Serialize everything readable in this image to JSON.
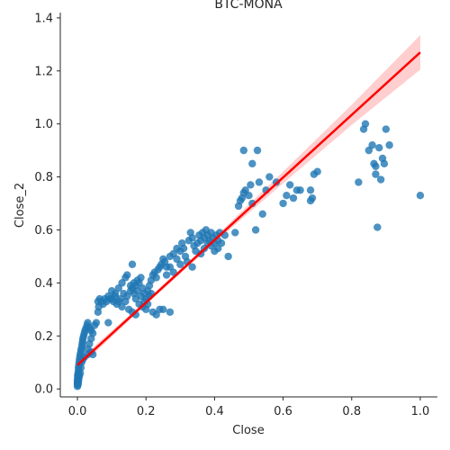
{
  "chart_data": {
    "type": "scatter",
    "title": "BTC-MONA",
    "xlabel": "Close",
    "ylabel": "Close_2",
    "xlim": [
      -0.05,
      1.05
    ],
    "ylim": [
      -0.03,
      1.42
    ],
    "xticks": [
      0.0,
      0.2,
      0.4,
      0.6,
      0.8,
      1.0
    ],
    "xtick_labels": [
      "0.0",
      "0.2",
      "0.4",
      "0.6",
      "0.8",
      "1.0"
    ],
    "yticks": [
      0.0,
      0.2,
      0.4,
      0.6,
      0.8,
      1.0,
      1.2,
      1.4
    ],
    "ytick_labels": [
      "0.0",
      "0.2",
      "0.4",
      "0.6",
      "0.8",
      "1.0",
      "1.2",
      "1.4"
    ],
    "grid": false,
    "point_color": "#1f77b4",
    "regression": {
      "color": "#ff0000",
      "band_color": "#ffb3b3",
      "x": [
        0.0,
        0.2,
        0.4,
        0.6,
        0.8,
        1.0
      ],
      "y": [
        0.09,
        0.326,
        0.562,
        0.798,
        1.034,
        1.27
      ],
      "ci_lower": [
        0.075,
        0.318,
        0.552,
        0.776,
        0.996,
        1.205
      ],
      "ci_upper": [
        0.105,
        0.334,
        0.572,
        0.82,
        1.072,
        1.335
      ]
    },
    "points": [
      [
        0.0,
        0.01
      ],
      [
        0.0,
        0.02
      ],
      [
        0.001,
        0.03
      ],
      [
        0.002,
        0.04
      ],
      [
        0.001,
        0.05
      ],
      [
        0.002,
        0.06
      ],
      [
        0.003,
        0.07
      ],
      [
        0.003,
        0.08
      ],
      [
        0.004,
        0.09
      ],
      [
        0.005,
        0.1
      ],
      [
        0.006,
        0.11
      ],
      [
        0.007,
        0.12
      ],
      [
        0.008,
        0.13
      ],
      [
        0.01,
        0.14
      ],
      [
        0.011,
        0.15
      ],
      [
        0.013,
        0.16
      ],
      [
        0.014,
        0.17
      ],
      [
        0.015,
        0.18
      ],
      [
        0.016,
        0.19
      ],
      [
        0.018,
        0.2
      ],
      [
        0.02,
        0.21
      ],
      [
        0.022,
        0.22
      ],
      [
        0.025,
        0.23
      ],
      [
        0.028,
        0.24
      ],
      [
        0.03,
        0.25
      ],
      [
        0.035,
        0.23
      ],
      [
        0.04,
        0.22
      ],
      [
        0.045,
        0.21
      ],
      [
        0.04,
        0.19
      ],
      [
        0.035,
        0.17
      ],
      [
        0.03,
        0.15
      ],
      [
        0.04,
        0.14
      ],
      [
        0.045,
        0.13
      ],
      [
        0.05,
        0.24
      ],
      [
        0.055,
        0.25
      ],
      [
        0.03,
        0.13
      ],
      [
        0.02,
        0.12
      ],
      [
        0.015,
        0.11
      ],
      [
        0.012,
        0.1
      ],
      [
        0.01,
        0.08
      ],
      [
        0.008,
        0.06
      ],
      [
        0.006,
        0.05
      ],
      [
        0.004,
        0.04
      ],
      [
        0.003,
        0.03
      ],
      [
        0.002,
        0.02
      ],
      [
        0.001,
        0.015
      ],
      [
        0.0,
        0.025
      ],
      [
        0.0,
        0.035
      ],
      [
        0.001,
        0.045
      ],
      [
        0.002,
        0.055
      ],
      [
        0.09,
        0.25
      ],
      [
        0.06,
        0.29
      ],
      [
        0.062,
        0.31
      ],
      [
        0.07,
        0.33
      ],
      [
        0.08,
        0.34
      ],
      [
        0.09,
        0.35
      ],
      [
        0.1,
        0.37
      ],
      [
        0.11,
        0.36
      ],
      [
        0.12,
        0.38
      ],
      [
        0.13,
        0.4
      ],
      [
        0.14,
        0.42
      ],
      [
        0.145,
        0.43
      ],
      [
        0.06,
        0.33
      ],
      [
        0.065,
        0.34
      ],
      [
        0.075,
        0.32
      ],
      [
        0.085,
        0.33
      ],
      [
        0.095,
        0.34
      ],
      [
        0.105,
        0.33
      ],
      [
        0.115,
        0.32
      ],
      [
        0.125,
        0.34
      ],
      [
        0.135,
        0.36
      ],
      [
        0.145,
        0.35
      ],
      [
        0.155,
        0.37
      ],
      [
        0.16,
        0.38
      ],
      [
        0.165,
        0.36
      ],
      [
        0.17,
        0.39
      ],
      [
        0.175,
        0.41
      ],
      [
        0.18,
        0.4
      ],
      [
        0.185,
        0.42
      ],
      [
        0.19,
        0.38
      ],
      [
        0.195,
        0.36
      ],
      [
        0.2,
        0.34
      ],
      [
        0.205,
        0.37
      ],
      [
        0.21,
        0.39
      ],
      [
        0.215,
        0.41
      ],
      [
        0.22,
        0.43
      ],
      [
        0.225,
        0.44
      ],
      [
        0.23,
        0.42
      ],
      [
        0.235,
        0.45
      ],
      [
        0.24,
        0.46
      ],
      [
        0.245,
        0.47
      ],
      [
        0.25,
        0.49
      ],
      [
        0.255,
        0.48
      ],
      [
        0.26,
        0.46
      ],
      [
        0.15,
        0.3
      ],
      [
        0.16,
        0.29
      ],
      [
        0.17,
        0.28
      ],
      [
        0.18,
        0.32
      ],
      [
        0.19,
        0.31
      ],
      [
        0.2,
        0.3
      ],
      [
        0.21,
        0.35
      ],
      [
        0.22,
        0.29
      ],
      [
        0.23,
        0.28
      ],
      [
        0.24,
        0.3
      ],
      [
        0.25,
        0.3
      ],
      [
        0.27,
        0.29
      ],
      [
        0.16,
        0.47
      ],
      [
        0.17,
        0.34
      ],
      [
        0.14,
        0.33
      ],
      [
        0.13,
        0.31
      ],
      [
        0.12,
        0.33
      ],
      [
        0.11,
        0.35
      ],
      [
        0.1,
        0.34
      ],
      [
        0.155,
        0.39
      ],
      [
        0.165,
        0.4
      ],
      [
        0.175,
        0.37
      ],
      [
        0.185,
        0.35
      ],
      [
        0.195,
        0.33
      ],
      [
        0.205,
        0.32
      ],
      [
        0.215,
        0.36
      ],
      [
        0.27,
        0.5
      ],
      [
        0.28,
        0.51
      ],
      [
        0.29,
        0.49
      ],
      [
        0.3,
        0.52
      ],
      [
        0.305,
        0.55
      ],
      [
        0.31,
        0.53
      ],
      [
        0.315,
        0.5
      ],
      [
        0.32,
        0.48
      ],
      [
        0.325,
        0.56
      ],
      [
        0.33,
        0.59
      ],
      [
        0.335,
        0.57
      ],
      [
        0.34,
        0.54
      ],
      [
        0.345,
        0.52
      ],
      [
        0.35,
        0.55
      ],
      [
        0.355,
        0.58
      ],
      [
        0.36,
        0.56
      ],
      [
        0.365,
        0.59
      ],
      [
        0.37,
        0.57
      ],
      [
        0.375,
        0.6
      ],
      [
        0.38,
        0.58
      ],
      [
        0.385,
        0.56
      ],
      [
        0.39,
        0.59
      ],
      [
        0.395,
        0.57
      ],
      [
        0.4,
        0.55
      ],
      [
        0.405,
        0.58
      ],
      [
        0.41,
        0.56
      ],
      [
        0.415,
        0.59
      ],
      [
        0.42,
        0.55
      ],
      [
        0.43,
        0.58
      ],
      [
        0.335,
        0.46
      ],
      [
        0.3,
        0.47
      ],
      [
        0.29,
        0.53
      ],
      [
        0.28,
        0.44
      ],
      [
        0.27,
        0.46
      ],
      [
        0.26,
        0.43
      ],
      [
        0.36,
        0.51
      ],
      [
        0.37,
        0.53
      ],
      [
        0.38,
        0.55
      ],
      [
        0.39,
        0.54
      ],
      [
        0.4,
        0.52
      ],
      [
        0.41,
        0.53
      ],
      [
        0.44,
        0.5
      ],
      [
        0.46,
        0.59
      ],
      [
        0.47,
        0.69
      ],
      [
        0.475,
        0.71
      ],
      [
        0.48,
        0.72
      ],
      [
        0.485,
        0.74
      ],
      [
        0.49,
        0.75
      ],
      [
        0.5,
        0.73
      ],
      [
        0.505,
        0.77
      ],
      [
        0.51,
        0.7
      ],
      [
        0.52,
        0.6
      ],
      [
        0.53,
        0.78
      ],
      [
        0.54,
        0.66
      ],
      [
        0.55,
        0.75
      ],
      [
        0.56,
        0.8
      ],
      [
        0.58,
        0.78
      ],
      [
        0.6,
        0.7
      ],
      [
        0.61,
        0.73
      ],
      [
        0.62,
        0.77
      ],
      [
        0.63,
        0.72
      ],
      [
        0.64,
        0.75
      ],
      [
        0.65,
        0.75
      ],
      [
        0.68,
        0.71
      ],
      [
        0.685,
        0.72
      ],
      [
        0.69,
        0.81
      ],
      [
        0.7,
        0.82
      ],
      [
        0.68,
        0.75
      ],
      [
        0.485,
        0.9
      ],
      [
        0.51,
        0.85
      ],
      [
        0.525,
        0.9
      ],
      [
        0.82,
        0.78
      ],
      [
        0.835,
        0.98
      ],
      [
        0.84,
        1.0
      ],
      [
        0.85,
        0.9
      ],
      [
        0.86,
        0.92
      ],
      [
        0.865,
        0.85
      ],
      [
        0.87,
        0.84
      ],
      [
        0.87,
        0.81
      ],
      [
        0.875,
        0.61
      ],
      [
        0.88,
        0.91
      ],
      [
        0.885,
        0.79
      ],
      [
        0.89,
        0.87
      ],
      [
        0.895,
        0.85
      ],
      [
        0.9,
        0.98
      ],
      [
        0.91,
        0.92
      ],
      [
        1.0,
        0.73
      ]
    ]
  }
}
